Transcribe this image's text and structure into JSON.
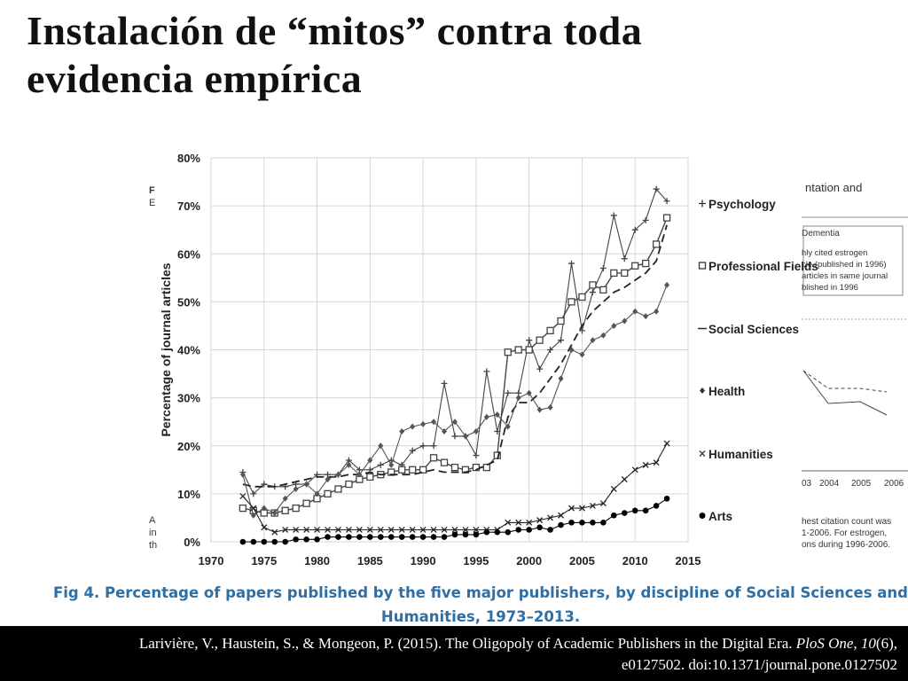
{
  "slide": {
    "title_line1": "Instalación de “mitos” contra toda",
    "title_line2": "evidencia empírica"
  },
  "figure": {
    "caption_line1": "Fig 4. Percentage of papers published by the five major publishers, by discipline of Social Sciences and",
    "caption_line2": "Humanities, 1973–2013."
  },
  "citation": {
    "authors": "Larivière, V., Haustein, S., & Mongeon, P. (2015). The Oligopoly of Academic Publishers in the Digital Era.",
    "journal": "PloS One",
    "volume": "10",
    "issue": "(6),",
    "pages": "e0127502. doi:10.1371/journal.pone.0127502"
  },
  "background_fragments": {
    "left": [
      "F",
      "E",
      "A",
      "in",
      "th"
    ],
    "right": [
      "ntation and",
      "Dementia",
      "hly cited estrogen",
      "cle (published in 1996)",
      "articles in same journal",
      "blished in 1996",
      "03",
      "2004",
      "2005",
      "2006",
      "hest citation count was",
      "1-2006. For estrogen,",
      "ons during 1996-2006."
    ]
  },
  "chart_data": {
    "type": "line",
    "ylabel": "Percentage of journal articles",
    "xlim": [
      1970,
      2015
    ],
    "ylim": [
      0,
      80
    ],
    "x_ticks": [
      "1970",
      "1975",
      "1980",
      "1985",
      "1990",
      "1995",
      "2000",
      "2005",
      "2010",
      "2015"
    ],
    "y_ticks": [
      "0%",
      "10%",
      "20%",
      "30%",
      "40%",
      "50%",
      "60%",
      "70%",
      "80%"
    ],
    "grid": true,
    "legend_position": "right",
    "x": [
      1973,
      1974,
      1975,
      1976,
      1977,
      1978,
      1979,
      1980,
      1981,
      1982,
      1983,
      1984,
      1985,
      1986,
      1987,
      1988,
      1989,
      1990,
      1991,
      1992,
      1993,
      1994,
      1995,
      1996,
      1997,
      1998,
      1999,
      2000,
      2001,
      2002,
      2003,
      2004,
      2005,
      2006,
      2007,
      2008,
      2009,
      2010,
      2011,
      2012,
      2013
    ],
    "series": [
      {
        "name": "Psychology",
        "marker": "plus",
        "line": "solid-light",
        "color": "#444444",
        "values": [
          14.5,
          10,
          12,
          11.5,
          11.5,
          12,
          12,
          14,
          14,
          14,
          17,
          15,
          15,
          16,
          17,
          16,
          19,
          20,
          20,
          33,
          22,
          22,
          18,
          35.5,
          23,
          31,
          31,
          42,
          36,
          40,
          42,
          58,
          44,
          52,
          57,
          68,
          59,
          65,
          67,
          73.5,
          71
        ]
      },
      {
        "name": "Professional Fields",
        "marker": "square",
        "line": "solid",
        "color": "#444444",
        "values": [
          7,
          6.5,
          6,
          6,
          6.5,
          7,
          8,
          9,
          10,
          11,
          12,
          13,
          13.5,
          14,
          14.5,
          15,
          15,
          15,
          17.5,
          16.5,
          15.5,
          15,
          15.5,
          15.5,
          18,
          39.5,
          40,
          40,
          42,
          44,
          46,
          50,
          51,
          53.5,
          52.5,
          56,
          56,
          57.5,
          58,
          62,
          67.5
        ]
      },
      {
        "name": "Social Sciences",
        "marker": "none",
        "line": "dashed",
        "color": "#222222",
        "values": [
          12,
          11.5,
          11.5,
          11.5,
          12,
          12.5,
          13,
          13.5,
          13.5,
          13.5,
          14,
          14,
          14.5,
          14,
          14,
          14,
          14,
          14.5,
          15,
          14.5,
          14.5,
          14.5,
          15,
          16,
          17,
          26,
          29,
          29,
          31,
          34,
          37,
          41,
          45,
          48,
          50,
          52,
          53,
          54.5,
          56,
          58.5,
          66
        ]
      },
      {
        "name": "Health",
        "marker": "diamond",
        "line": "solid-light",
        "color": "#555555",
        "values": [
          14,
          5.5,
          7,
          6,
          9,
          11,
          12,
          10,
          13,
          14,
          16,
          14,
          17,
          20,
          16,
          23,
          24,
          24.5,
          25,
          23,
          25,
          22,
          23,
          26,
          26.5,
          24,
          30,
          31,
          27.5,
          28,
          34,
          40,
          39,
          42,
          43,
          45,
          46,
          48,
          47,
          48,
          53.5
        ]
      },
      {
        "name": "Humanities",
        "marker": "x",
        "line": "solid-light",
        "color": "#222222",
        "values": [
          9.5,
          7,
          3,
          2,
          2.5,
          2.5,
          2.5,
          2.5,
          2.5,
          2.5,
          2.5,
          2.5,
          2.5,
          2.5,
          2.5,
          2.5,
          2.5,
          2.5,
          2.5,
          2.5,
          2.5,
          2.5,
          2.5,
          2.5,
          2.5,
          4,
          4,
          4,
          4.5,
          5,
          5.5,
          7,
          7,
          7.5,
          8,
          11,
          13,
          15,
          16,
          16.5,
          20.5
        ]
      },
      {
        "name": "Arts",
        "marker": "dot",
        "line": "solid-light",
        "color": "#000000",
        "values": [
          0,
          0,
          0,
          0,
          0,
          0.5,
          0.5,
          0.5,
          1,
          1,
          1,
          1,
          1,
          1,
          1,
          1,
          1,
          1,
          1,
          1,
          1.5,
          1.5,
          1.5,
          2,
          2,
          2,
          2.5,
          2.5,
          3,
          2.5,
          3.5,
          4,
          4,
          4,
          4,
          5.5,
          6,
          6.5,
          6.5,
          7.5,
          9
        ]
      }
    ]
  }
}
